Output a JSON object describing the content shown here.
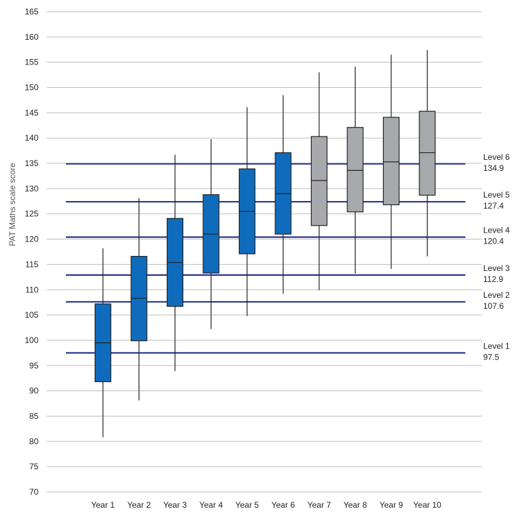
{
  "chart_data": {
    "type": "boxplot",
    "ylabel": "PAT Maths scale score",
    "xlabel": "",
    "ylim": [
      70,
      165
    ],
    "yticks": [
      70,
      75,
      80,
      85,
      90,
      95,
      100,
      105,
      110,
      115,
      120,
      125,
      130,
      135,
      140,
      145,
      150,
      155,
      160,
      165
    ],
    "grid": true,
    "categories": [
      "Year 1",
      "Year 2",
      "Year 3",
      "Year 4",
      "Year 5",
      "Year 6",
      "Year 7",
      "Year 8",
      "Year 9",
      "Year 10"
    ],
    "boxes": [
      {
        "min": 80.8,
        "q1": 91.8,
        "median": 99.5,
        "q3": 107.2,
        "max": 118.2,
        "color": "#0f6cbd"
      },
      {
        "min": 88.1,
        "q1": 99.9,
        "median": 108.3,
        "q3": 116.6,
        "max": 128.1,
        "color": "#0f6cbd"
      },
      {
        "min": 93.9,
        "q1": 106.7,
        "median": 115.4,
        "q3": 124.1,
        "max": 136.7,
        "color": "#0f6cbd"
      },
      {
        "min": 102.2,
        "q1": 113.3,
        "median": 121.0,
        "q3": 128.8,
        "max": 139.8,
        "color": "#0f6cbd"
      },
      {
        "min": 104.8,
        "q1": 117.1,
        "median": 125.5,
        "q3": 133.9,
        "max": 146.1,
        "color": "#0f6cbd"
      },
      {
        "min": 109.2,
        "q1": 121.0,
        "median": 129.0,
        "q3": 137.1,
        "max": 148.5,
        "color": "#0f6cbd"
      },
      {
        "min": 109.9,
        "q1": 122.7,
        "median": 131.6,
        "q3": 140.3,
        "max": 153.0,
        "color": "#a7a9ac"
      },
      {
        "min": 113.2,
        "q1": 125.4,
        "median": 133.6,
        "q3": 142.1,
        "max": 154.1,
        "color": "#a7a9ac"
      },
      {
        "min": 114.1,
        "q1": 126.8,
        "median": 135.3,
        "q3": 144.1,
        "max": 156.5,
        "color": "#a7a9ac"
      },
      {
        "min": 116.6,
        "q1": 128.7,
        "median": 137.1,
        "q3": 145.3,
        "max": 157.4,
        "color": "#a7a9ac"
      }
    ],
    "levels": [
      {
        "label": "Level 6",
        "value": 134.9,
        "value_text": "134.9"
      },
      {
        "label": "Level 5",
        "value": 127.4,
        "value_text": "127.4"
      },
      {
        "label": "Level 4",
        "value": 120.4,
        "value_text": "120.4"
      },
      {
        "label": "Level 3",
        "value": 112.9,
        "value_text": "112.9"
      },
      {
        "label": "Level 2",
        "value": 107.6,
        "value_text": "107.6"
      },
      {
        "label": "Level 1",
        "value": 97.5,
        "value_text": "97.5"
      }
    ],
    "level_line_color": "#2b3990",
    "grid_color": "#bdbdbd"
  }
}
